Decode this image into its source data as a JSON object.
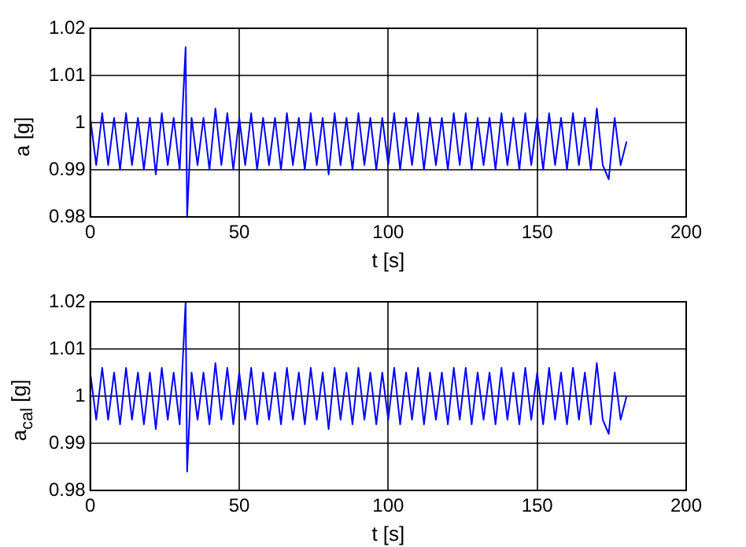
{
  "chart_data": [
    {
      "type": "line",
      "xlabel": "t [s]",
      "ylabel": "a  [g]",
      "xlim": [
        0,
        200
      ],
      "ylim": [
        0.98,
        1.02
      ],
      "xticks": [
        0,
        50,
        100,
        150,
        200
      ],
      "yticks": [
        0.98,
        0.99,
        1,
        1.01,
        1.02
      ],
      "grid": true,
      "legend": false,
      "marker": "none",
      "line_style": "solid",
      "series": [
        {
          "color": "#0000ff",
          "x": [
            0,
            2,
            4,
            6,
            8,
            10,
            12,
            14,
            16,
            18,
            20,
            22,
            24,
            26,
            28,
            30,
            32,
            32.5,
            34,
            36,
            38,
            40,
            42,
            44,
            46,
            48,
            50,
            52,
            54,
            56,
            58,
            60,
            62,
            64,
            66,
            68,
            70,
            72,
            74,
            76,
            78,
            80,
            82,
            84,
            86,
            88,
            90,
            92,
            94,
            96,
            98,
            100,
            102,
            104,
            106,
            108,
            110,
            112,
            114,
            116,
            118,
            120,
            122,
            124,
            126,
            128,
            130,
            132,
            134,
            136,
            138,
            140,
            142,
            144,
            146,
            148,
            150,
            152,
            154,
            156,
            158,
            160,
            162,
            164,
            166,
            168,
            170,
            172,
            174,
            176,
            178,
            180
          ],
          "values": [
            1.001,
            0.991,
            1.002,
            0.991,
            1.001,
            0.99,
            1.002,
            0.991,
            1.001,
            0.99,
            1.001,
            0.989,
            1.002,
            0.991,
            1.001,
            0.99,
            1.016,
            0.98,
            1.001,
            0.991,
            1.001,
            0.99,
            1.003,
            0.991,
            1.002,
            0.99,
            1.001,
            0.991,
            1.002,
            0.99,
            1.001,
            0.991,
            1.001,
            0.99,
            1.002,
            0.991,
            1.001,
            0.99,
            1.002,
            0.991,
            1.001,
            0.989,
            1.002,
            0.991,
            1.001,
            0.99,
            1.002,
            0.991,
            1.001,
            0.99,
            1.001,
            0.991,
            1.002,
            0.99,
            1.001,
            0.991,
            1.002,
            0.99,
            1.001,
            0.991,
            1.001,
            0.99,
            1.002,
            0.991,
            1.002,
            0.99,
            1.001,
            0.991,
            1.001,
            0.99,
            1.002,
            0.991,
            1.001,
            0.99,
            1.002,
            0.991,
            1.001,
            0.99,
            1.002,
            0.991,
            1.001,
            0.99,
            1.002,
            0.991,
            1.001,
            0.99,
            1.003,
            0.991,
            0.988,
            1.001,
            0.991,
            0.996
          ]
        }
      ]
    },
    {
      "type": "line",
      "xlabel": "t [s]",
      "ylabel": "a$_{cal}$ [g]",
      "xlim": [
        0,
        200
      ],
      "ylim": [
        0.98,
        1.02
      ],
      "xticks": [
        0,
        50,
        100,
        150,
        200
      ],
      "yticks": [
        0.98,
        0.99,
        1,
        1.01,
        1.02
      ],
      "grid": true,
      "legend": false,
      "marker": "none",
      "line_style": "solid",
      "series": [
        {
          "color": "#0000ff",
          "x": [
            0,
            2,
            4,
            6,
            8,
            10,
            12,
            14,
            16,
            18,
            20,
            22,
            24,
            26,
            28,
            30,
            32,
            32.5,
            34,
            36,
            38,
            40,
            42,
            44,
            46,
            48,
            50,
            52,
            54,
            56,
            58,
            60,
            62,
            64,
            66,
            68,
            70,
            72,
            74,
            76,
            78,
            80,
            82,
            84,
            86,
            88,
            90,
            92,
            94,
            96,
            98,
            100,
            102,
            104,
            106,
            108,
            110,
            112,
            114,
            116,
            118,
            120,
            122,
            124,
            126,
            128,
            130,
            132,
            134,
            136,
            138,
            140,
            142,
            144,
            146,
            148,
            150,
            152,
            154,
            156,
            158,
            160,
            162,
            164,
            166,
            168,
            170,
            172,
            174,
            176,
            178,
            180
          ],
          "values": [
            1.005,
            0.995,
            1.006,
            0.995,
            1.005,
            0.994,
            1.006,
            0.995,
            1.005,
            0.994,
            1.005,
            0.993,
            1.006,
            0.995,
            1.005,
            0.994,
            1.02,
            0.984,
            1.005,
            0.995,
            1.005,
            0.994,
            1.007,
            0.995,
            1.006,
            0.994,
            1.005,
            0.995,
            1.006,
            0.994,
            1.005,
            0.995,
            1.005,
            0.994,
            1.006,
            0.995,
            1.005,
            0.994,
            1.006,
            0.995,
            1.005,
            0.993,
            1.006,
            0.995,
            1.005,
            0.994,
            1.006,
            0.995,
            1.005,
            0.994,
            1.005,
            0.995,
            1.006,
            0.994,
            1.005,
            0.995,
            1.006,
            0.994,
            1.005,
            0.995,
            1.005,
            0.994,
            1.006,
            0.995,
            1.006,
            0.994,
            1.005,
            0.995,
            1.005,
            0.994,
            1.006,
            0.995,
            1.005,
            0.994,
            1.006,
            0.995,
            1.005,
            0.994,
            1.006,
            0.995,
            1.005,
            0.994,
            1.006,
            0.995,
            1.005,
            0.994,
            1.007,
            0.995,
            0.992,
            1.005,
            0.995,
            1.0
          ]
        }
      ]
    }
  ]
}
